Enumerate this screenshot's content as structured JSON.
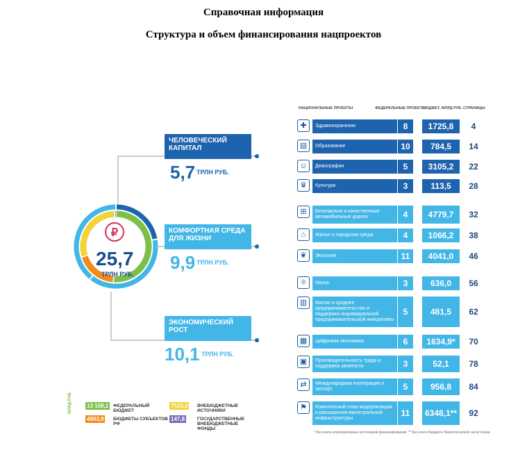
{
  "header": {
    "title": "Справочная информация",
    "subtitle": "Структура и объем финансирования нацпроектов"
  },
  "chart_data": {
    "type": "table",
    "total": {
      "value": "25,7",
      "unit": "ТРЛН РУБ."
    },
    "categories": [
      {
        "name": "ЧЕЛОВЕЧЕСКИЙ КАПИТАЛ",
        "value": "5,7",
        "unit": "ТРЛН РУБ.",
        "color": "#1d63ad"
      },
      {
        "name": "КОМФОРТНАЯ СРЕДА ДЛЯ ЖИЗНИ",
        "value": "9,9",
        "unit": "ТРЛН РУБ.",
        "color": "#42b6e6"
      },
      {
        "name": "ЭКОНОМИЧЕСКИЙ РОСТ",
        "value": "10,1",
        "unit": "ТРЛН РУБ.",
        "color": "#42b6e6"
      }
    ],
    "columns": [
      "НАЦИОНАЛЬНЫЕ ПРОЕКТЫ",
      "ФЕДЕРАЛЬНЫЕ ПРОЕКТЫ",
      "БЮДЖЕТ, МЛРД РУБ.",
      "СТРАНИЦЫ"
    ],
    "rows": [
      {
        "name": "Здравоохранение",
        "fed": "8",
        "budget": "1725,8",
        "page": "4",
        "group": "dark",
        "icon": "medical-cross-icon"
      },
      {
        "name": "Образование",
        "fed": "10",
        "budget": "784,5",
        "page": "14",
        "group": "dark",
        "icon": "book-icon"
      },
      {
        "name": "Демография",
        "fed": "5",
        "budget": "3105,2",
        "page": "22",
        "group": "dark",
        "icon": "family-icon"
      },
      {
        "name": "Культура",
        "fed": "3",
        "budget": "113,5",
        "page": "28",
        "group": "dark",
        "icon": "theater-icon"
      },
      {
        "name": "Безопасные и качественные автомобильные дороги",
        "fed": "4",
        "budget": "4779,7",
        "page": "32",
        "group": "light",
        "icon": "road-icon"
      },
      {
        "name": "Жилье и городская среда",
        "fed": "4",
        "budget": "1066,2",
        "page": "38",
        "group": "light",
        "icon": "house-icon"
      },
      {
        "name": "Экология",
        "fed": "11",
        "budget": "4041,0",
        "page": "46",
        "group": "light",
        "icon": "leaf-icon"
      },
      {
        "name": "Наука",
        "fed": "3",
        "budget": "636,0",
        "page": "56",
        "group": "light",
        "icon": "atom-icon"
      },
      {
        "name": "Малое и среднее предпринимательство и поддержка индивидуальной предпринимательской инициативы",
        "fed": "5",
        "budget": "481,5",
        "page": "62",
        "group": "light",
        "icon": "business-icon"
      },
      {
        "name": "Цифровая экономика",
        "fed": "6",
        "budget": "1634,9*",
        "page": "70",
        "group": "light",
        "icon": "chart-screen-icon"
      },
      {
        "name": "Производительность труда и поддержка занятости",
        "fed": "3",
        "budget": "52,1",
        "page": "78",
        "group": "light",
        "icon": "factory-icon"
      },
      {
        "name": "Международная кооперация и экспорт",
        "fed": "5",
        "budget": "956,8",
        "page": "84",
        "group": "light",
        "icon": "export-icon"
      },
      {
        "name": "Комплексный план модернизации и расширения магистральной инфраструктуры",
        "fed": "11",
        "budget": "6348,1**",
        "page": "92",
        "group": "light",
        "icon": "infrastructure-icon"
      }
    ],
    "legend": {
      "side_label": "МЛРД РУБ.",
      "items": [
        {
          "value": "13 158,2",
          "label": "ФЕДЕРАЛЬНЫЙ БЮДЖЕТ",
          "color": "#7cc04b"
        },
        {
          "value": "4903,9",
          "label": "БЮДЖЕТЫ СУБЪЕКТОВ РФ",
          "color": "#f08c1e"
        },
        {
          "value": "7515,3",
          "label": "ВНЕБЮДЖЕТНЫЕ ИСТОЧНИКИ",
          "color": "#f2d33a"
        },
        {
          "value": "147,8",
          "label": "ГОСУДАРСТВЕННЫЕ ВНЕБЮДЖЕТНЫЕ ФОНДЫ",
          "color": "#7b6cb8"
        }
      ]
    },
    "footnotes": [
      "* Без учета альтернативных источников финансирования",
      "** Без учета бюджета Энергетической части плана"
    ]
  }
}
